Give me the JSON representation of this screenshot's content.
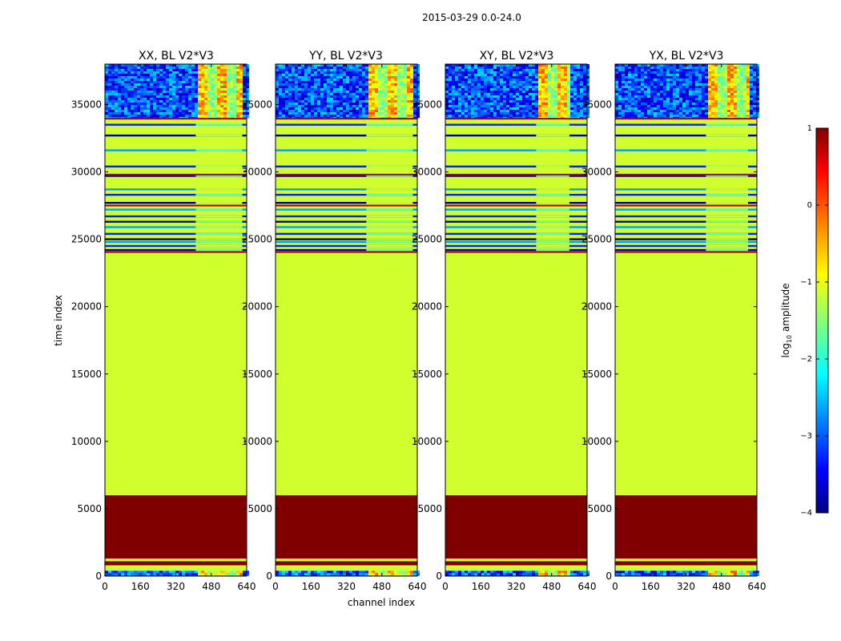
{
  "chart_data": {
    "type": "heatmap",
    "suptitle": "2015-03-29 0.0-24.0",
    "xlabel": "channel index",
    "ylabel": "time index",
    "xlim": [
      0,
      640
    ],
    "ylim": [
      0,
      38000
    ],
    "xticks": [
      0,
      160,
      320,
      480,
      640
    ],
    "yticks": [
      0,
      5000,
      10000,
      15000,
      20000,
      25000,
      30000,
      35000
    ],
    "colormap": "jet",
    "colorbar": {
      "label_prefix": "log",
      "label_sub": "10",
      "label_suffix": " amplitude",
      "range": [
        -4,
        1
      ],
      "ticks": [
        1,
        0,
        -1,
        -2,
        -3,
        -4
      ],
      "tick_labels": [
        "1",
        "0",
        "−1",
        "−2",
        "−3",
        "−4"
      ]
    },
    "panels": [
      {
        "title": "XX, BL V2*V3",
        "active_channels": [
          410,
          620
        ]
      },
      {
        "title": "YY, BL V2*V3",
        "active_channels": [
          410,
          620
        ]
      },
      {
        "title": "XY, BL V2*V3",
        "active_channels": [
          410,
          560
        ]
      },
      {
        "title": "YX, BL V2*V3",
        "active_channels": [
          410,
          600
        ]
      }
    ],
    "bands": [
      {
        "t0": 0,
        "t1": 400,
        "kind": "noise",
        "level": -2.9
      },
      {
        "t0": 400,
        "t1": 800,
        "kind": "solid",
        "level": -1.1
      },
      {
        "t0": 800,
        "t1": 1100,
        "kind": "solid",
        "level": 1.0
      },
      {
        "t0": 1100,
        "t1": 1300,
        "kind": "solid",
        "level": -1.1
      },
      {
        "t0": 1300,
        "t1": 6000,
        "kind": "solid",
        "level": 1.0
      },
      {
        "t0": 6000,
        "t1": 24000,
        "kind": "solid",
        "level": -1.1
      },
      {
        "t0": 24000,
        "t1": 34000,
        "kind": "striped",
        "level": -1.1
      },
      {
        "t0": 34000,
        "t1": 38000,
        "kind": "noise",
        "level": -3.0
      }
    ],
    "stripe_times": [
      24200,
      24500,
      24800,
      25000,
      25400,
      25900,
      26300,
      26700,
      27200,
      27700,
      28300,
      28700,
      29700,
      30400,
      31600,
      32700,
      33500
    ],
    "red_line_times": [
      24050,
      27500,
      29800,
      33950
    ]
  }
}
